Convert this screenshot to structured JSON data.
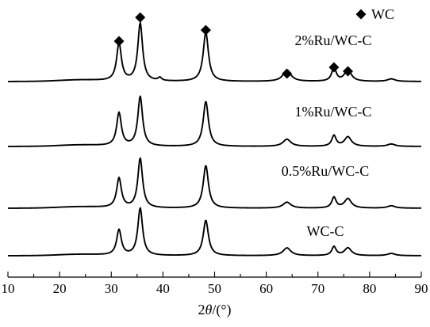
{
  "chart_data": {
    "type": "line",
    "xlabel": "2θ/(°)",
    "xlim": [
      10,
      90
    ],
    "xticks": [
      10,
      20,
      30,
      40,
      50,
      60,
      70,
      80,
      90
    ],
    "y_axis_shown": false,
    "legend": {
      "symbol": "diamond",
      "label": "WC",
      "placement": "top-right"
    },
    "marker_positions_2theta": [
      31.5,
      35.6,
      48.3,
      64.0,
      73.1,
      75.8
    ],
    "peaks_2theta": [
      31.5,
      35.6,
      39.4,
      48.3,
      64.0,
      73.1,
      75.8,
      84.2
    ],
    "series": [
      {
        "name": "2%Ru/WC-C",
        "peak_heights": [
          3.0,
          4.6,
          0.25,
          3.9,
          0.9,
          1.1,
          0.9,
          0.2
        ],
        "baseline": 0.0
      },
      {
        "name": "1%Ru/WC-C",
        "peak_heights": [
          2.8,
          4.2,
          0.0,
          3.8,
          0.6,
          0.9,
          0.8,
          0.2
        ],
        "baseline": 0.0
      },
      {
        "name": "0.5%Ru/WC-C",
        "peak_heights": [
          2.5,
          4.2,
          0.0,
          3.6,
          0.5,
          0.9,
          0.8,
          0.2
        ],
        "baseline": 0.0
      },
      {
        "name": "WC-C",
        "peak_heights": [
          2.3,
          4.3,
          0.0,
          3.2,
          0.7,
          0.8,
          0.7,
          0.2
        ],
        "baseline": 0.0
      }
    ]
  }
}
